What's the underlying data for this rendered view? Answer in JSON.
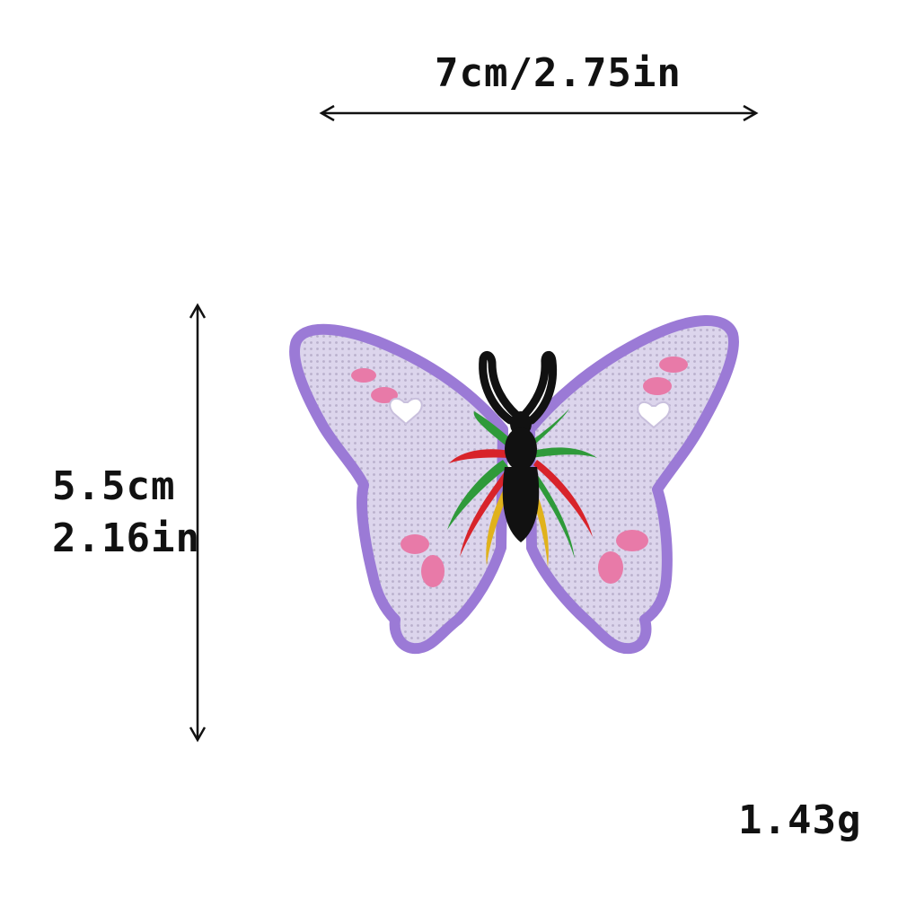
{
  "dimensions": {
    "width": "7cm/2.75in",
    "height_cm": "5.5cm",
    "height_in": "2.16in",
    "weight": "1.43g"
  },
  "colors": {
    "wing_outline": "#9b7ad6",
    "wing_fill": "#ddd6ee",
    "body": "#111111",
    "accent_pink": "#e87aa8",
    "ray_red": "#d8232a",
    "ray_green": "#2f9a3a",
    "ray_yellow": "#e0b21c",
    "arrow": "#111111"
  },
  "image": {
    "subject": "butterfly-patch"
  }
}
